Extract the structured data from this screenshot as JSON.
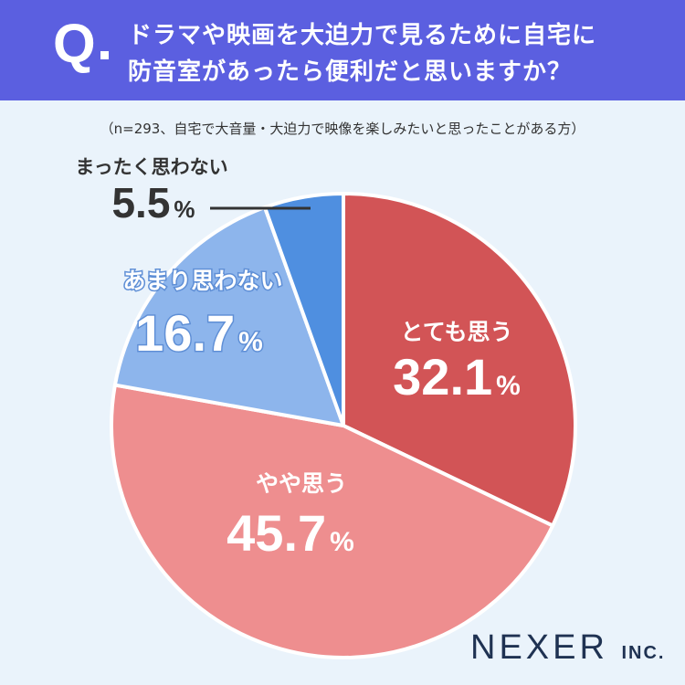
{
  "header": {
    "q_mark": "Q",
    "title_line1": "ドラマや映画を大迫力で見るために自宅に",
    "title_line2": "防音室があったら便利だと思いますか？"
  },
  "note": "（n=293、自宅で大音量・大迫力で映像を楽しみたいと思ったことがある方）",
  "brand": {
    "name": "NEXER",
    "suffix": "INC."
  },
  "colors": {
    "header_bg": "#5b5fe0",
    "page_bg": "#eaf3fb",
    "slice_1": "#d25456",
    "slice_2": "#ee8e8f",
    "slice_3": "#8db5ec",
    "slice_4": "#4f8fe0",
    "brand": "#1f3252"
  },
  "chart_data": {
    "type": "pie",
    "title": "",
    "categories": [
      "とても思う",
      "やや思う",
      "あまり思わない",
      "まったく思わない"
    ],
    "values": [
      32.1,
      45.7,
      16.7,
      5.5
    ],
    "unit": "%",
    "start": "12 o'clock",
    "direction": "clockwise",
    "legend": "none (labels on slices)"
  }
}
